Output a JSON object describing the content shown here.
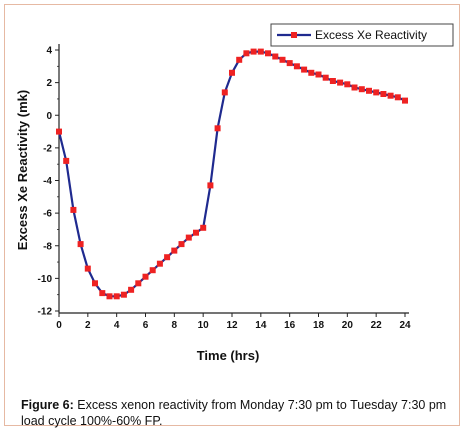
{
  "chart_data": {
    "type": "line",
    "xlabel": "Time (hrs)",
    "ylabel": "Excess Xe Reactivity (mk)",
    "xlim": [
      0,
      24
    ],
    "ylim": [
      -12,
      4
    ],
    "xticks": [
      0,
      2,
      4,
      6,
      8,
      10,
      12,
      14,
      16,
      18,
      20,
      22,
      24
    ],
    "yticks": [
      4,
      2,
      0,
      -2,
      -4,
      -6,
      -8,
      -10,
      -12
    ],
    "legend_position": "top-right",
    "grid": false,
    "series": [
      {
        "name": "Excess Xe Reactivity",
        "line_color": "#1f2a8f",
        "marker_color": "#ee2222",
        "x": [
          0,
          0.5,
          1,
          1.5,
          2,
          2.5,
          3,
          3.5,
          4,
          4.5,
          5,
          5.5,
          6,
          6.5,
          7,
          7.5,
          8,
          8.5,
          9,
          9.5,
          10,
          10.5,
          11,
          11.5,
          12,
          12.5,
          13,
          13.5,
          14,
          14.5,
          15,
          15.5,
          16,
          16.5,
          17,
          17.5,
          18,
          18.5,
          19,
          19.5,
          20,
          20.5,
          21,
          21.5,
          22,
          22.5,
          23,
          23.5,
          24
        ],
        "y": [
          -1.0,
          -2.8,
          -5.8,
          -7.9,
          -9.4,
          -10.3,
          -10.9,
          -11.1,
          -11.1,
          -11.0,
          -10.7,
          -10.3,
          -9.9,
          -9.5,
          -9.1,
          -8.7,
          -8.3,
          -7.9,
          -7.5,
          -7.2,
          -6.9,
          -4.3,
          -0.8,
          1.4,
          2.6,
          3.4,
          3.8,
          3.9,
          3.9,
          3.8,
          3.6,
          3.4,
          3.2,
          3.0,
          2.8,
          2.6,
          2.5,
          2.3,
          2.1,
          2.0,
          1.9,
          1.7,
          1.6,
          1.5,
          1.4,
          1.3,
          1.2,
          1.1,
          0.9
        ]
      }
    ]
  },
  "caption": {
    "label": "Figure 6:",
    "text": " Excess xenon reactivity from Monday 7:30 pm to Tuesday 7:30 pm load cycle 100%-60% FP."
  }
}
